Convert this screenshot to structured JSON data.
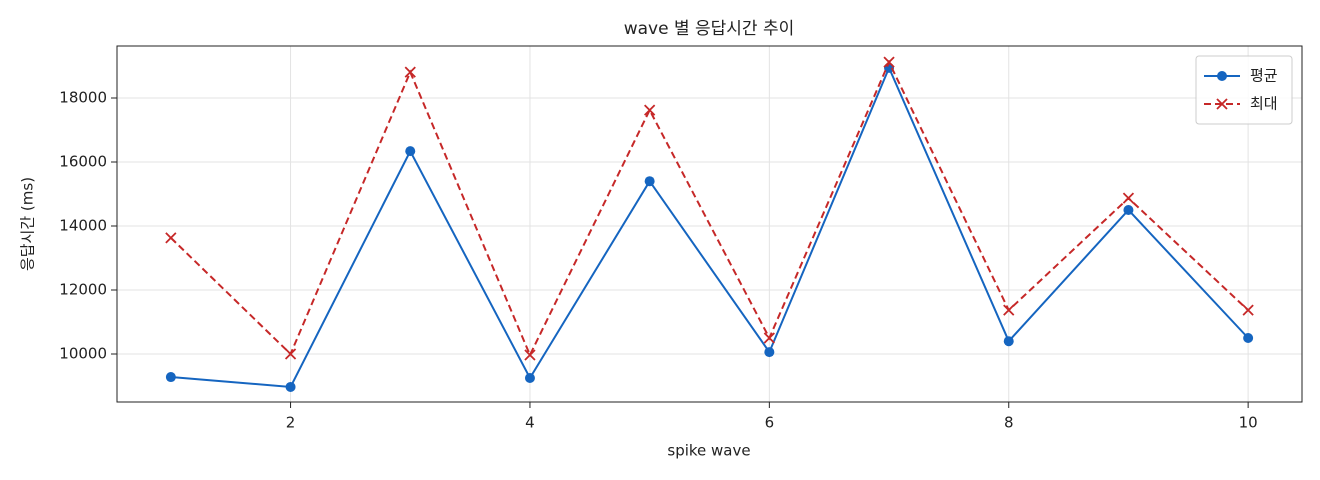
{
  "chart_data": {
    "type": "line",
    "title": "wave 별 응답시간 추이",
    "x_label": "spike wave",
    "y_label": "응답시간 (ms)",
    "x": [
      1,
      2,
      3,
      4,
      5,
      6,
      7,
      8,
      9,
      10
    ],
    "series": [
      {
        "name": "평균",
        "color": "#1565c0",
        "marker": "circle",
        "dashed": false,
        "values": [
          9280,
          8970,
          16340,
          9250,
          15400,
          10060,
          18940,
          10400,
          14500,
          10500
        ]
      },
      {
        "name": "최대",
        "color": "#c62828",
        "marker": "x",
        "dashed": true,
        "values": [
          13630,
          10000,
          18810,
          9970,
          17620,
          10500,
          19120,
          11370,
          14870,
          11370
        ]
      }
    ],
    "xlim": [
      0.55,
      10.45
    ],
    "ylim": [
      8500,
      19625
    ],
    "xticks": [
      2,
      4,
      6,
      8,
      10
    ],
    "yticks": [
      10000,
      12000,
      14000,
      16000,
      18000
    ],
    "grid": true,
    "legend": "upper right"
  }
}
